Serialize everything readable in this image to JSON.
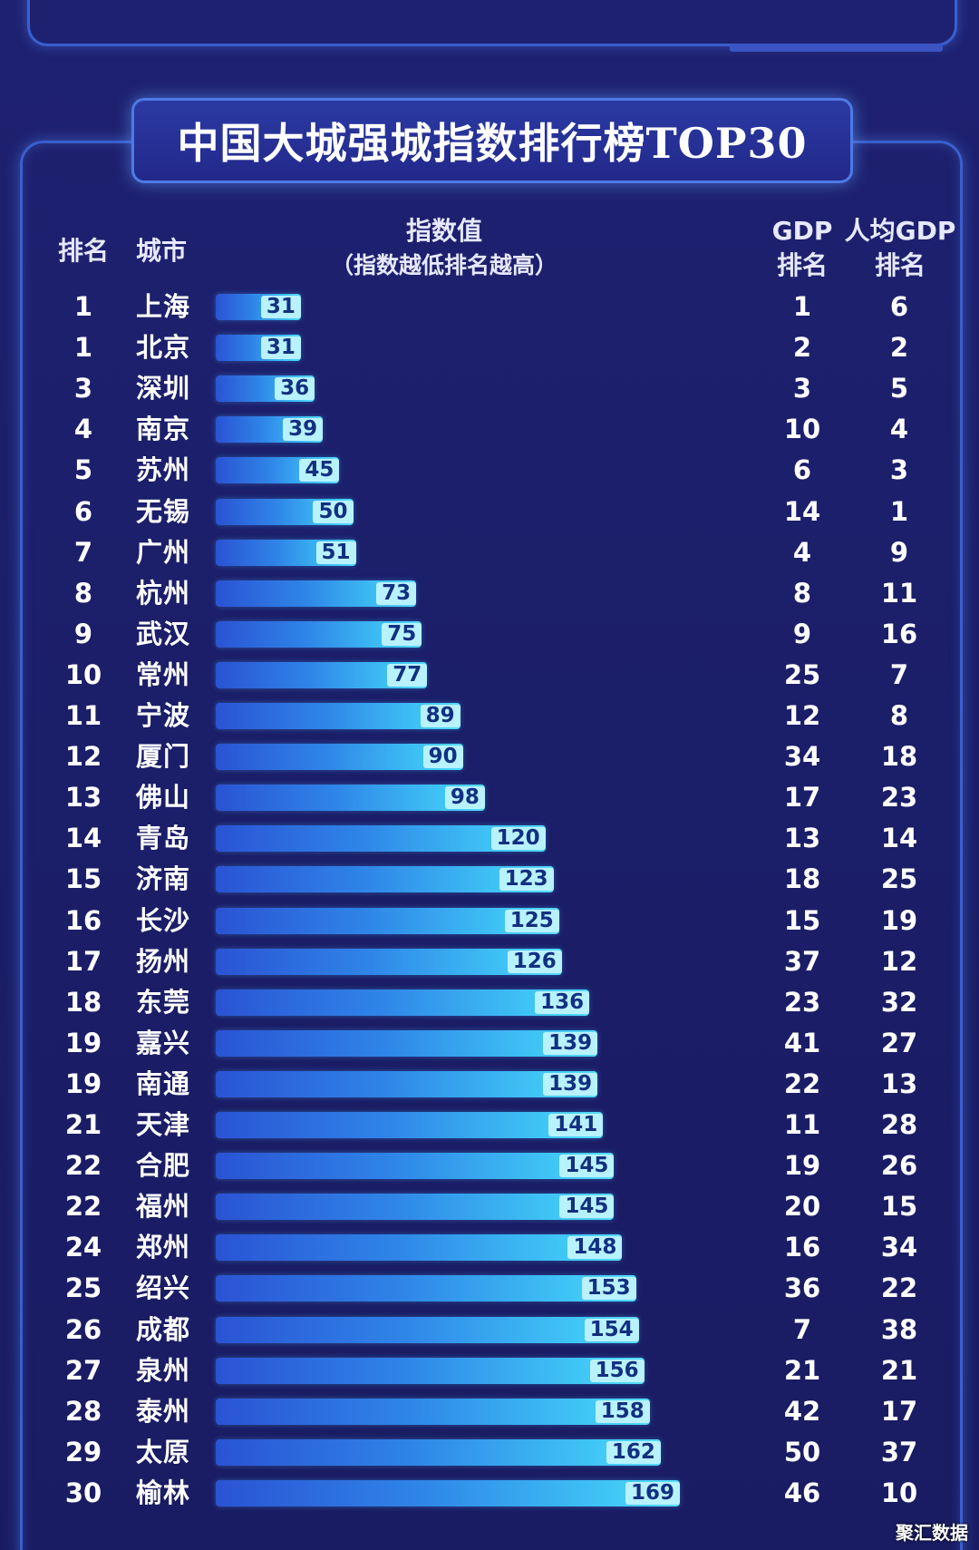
{
  "title": "中国大城强城指数排行榜TOP30",
  "headers": {
    "rank": "排名",
    "city": "城市",
    "index_line1": "指数值",
    "index_line2": "（指数越低排名越高）",
    "gdp_line1": "GDP",
    "gdp_line2": "排名",
    "pgdp_line1": "人均GDP",
    "pgdp_line2": "排名"
  },
  "watermark": "聚汇数据",
  "colors": {
    "background": "#1c1f6b",
    "frame": "#3a5fd0",
    "bar_start": "#2a53d4",
    "bar_end": "#56dcfb",
    "label_bg": "#b9f2ff"
  },
  "chart_data": {
    "type": "bar",
    "orientation": "horizontal",
    "title": "中国大城强城指数排行榜TOP30",
    "xlim": [
      0,
      180
    ],
    "rows": [
      {
        "rank": "1",
        "city": "上海",
        "value": 31,
        "gdp_rank": "1",
        "per_capita_gdp_rank": "6"
      },
      {
        "rank": "1",
        "city": "北京",
        "value": 31,
        "gdp_rank": "2",
        "per_capita_gdp_rank": "2"
      },
      {
        "rank": "3",
        "city": "深圳",
        "value": 36,
        "gdp_rank": "3",
        "per_capita_gdp_rank": "5"
      },
      {
        "rank": "4",
        "city": "南京",
        "value": 39,
        "gdp_rank": "10",
        "per_capita_gdp_rank": "4"
      },
      {
        "rank": "5",
        "city": "苏州",
        "value": 45,
        "gdp_rank": "6",
        "per_capita_gdp_rank": "3"
      },
      {
        "rank": "6",
        "city": "无锡",
        "value": 50,
        "gdp_rank": "14",
        "per_capita_gdp_rank": "1"
      },
      {
        "rank": "7",
        "city": "广州",
        "value": 51,
        "gdp_rank": "4",
        "per_capita_gdp_rank": "9"
      },
      {
        "rank": "8",
        "city": "杭州",
        "value": 73,
        "gdp_rank": "8",
        "per_capita_gdp_rank": "11"
      },
      {
        "rank": "9",
        "city": "武汉",
        "value": 75,
        "gdp_rank": "9",
        "per_capita_gdp_rank": "16"
      },
      {
        "rank": "10",
        "city": "常州",
        "value": 77,
        "gdp_rank": "25",
        "per_capita_gdp_rank": "7"
      },
      {
        "rank": "11",
        "city": "宁波",
        "value": 89,
        "gdp_rank": "12",
        "per_capita_gdp_rank": "8"
      },
      {
        "rank": "12",
        "city": "厦门",
        "value": 90,
        "gdp_rank": "34",
        "per_capita_gdp_rank": "18"
      },
      {
        "rank": "13",
        "city": "佛山",
        "value": 98,
        "gdp_rank": "17",
        "per_capita_gdp_rank": "23"
      },
      {
        "rank": "14",
        "city": "青岛",
        "value": 120,
        "gdp_rank": "13",
        "per_capita_gdp_rank": "14"
      },
      {
        "rank": "15",
        "city": "济南",
        "value": 123,
        "gdp_rank": "18",
        "per_capita_gdp_rank": "25"
      },
      {
        "rank": "16",
        "city": "长沙",
        "value": 125,
        "gdp_rank": "15",
        "per_capita_gdp_rank": "19"
      },
      {
        "rank": "17",
        "city": "扬州",
        "value": 126,
        "gdp_rank": "37",
        "per_capita_gdp_rank": "12"
      },
      {
        "rank": "18",
        "city": "东莞",
        "value": 136,
        "gdp_rank": "23",
        "per_capita_gdp_rank": "32"
      },
      {
        "rank": "19",
        "city": "嘉兴",
        "value": 139,
        "gdp_rank": "41",
        "per_capita_gdp_rank": "27"
      },
      {
        "rank": "19",
        "city": "南通",
        "value": 139,
        "gdp_rank": "22",
        "per_capita_gdp_rank": "13"
      },
      {
        "rank": "21",
        "city": "天津",
        "value": 141,
        "gdp_rank": "11",
        "per_capita_gdp_rank": "28"
      },
      {
        "rank": "22",
        "city": "合肥",
        "value": 145,
        "gdp_rank": "19",
        "per_capita_gdp_rank": "26"
      },
      {
        "rank": "22",
        "city": "福州",
        "value": 145,
        "gdp_rank": "20",
        "per_capita_gdp_rank": "15"
      },
      {
        "rank": "24",
        "city": "郑州",
        "value": 148,
        "gdp_rank": "16",
        "per_capita_gdp_rank": "34"
      },
      {
        "rank": "25",
        "city": "绍兴",
        "value": 153,
        "gdp_rank": "36",
        "per_capita_gdp_rank": "22"
      },
      {
        "rank": "26",
        "city": "成都",
        "value": 154,
        "gdp_rank": "7",
        "per_capita_gdp_rank": "38"
      },
      {
        "rank": "27",
        "city": "泉州",
        "value": 156,
        "gdp_rank": "21",
        "per_capita_gdp_rank": "21"
      },
      {
        "rank": "28",
        "city": "泰州",
        "value": 158,
        "gdp_rank": "42",
        "per_capita_gdp_rank": "17"
      },
      {
        "rank": "29",
        "city": "太原",
        "value": 162,
        "gdp_rank": "50",
        "per_capita_gdp_rank": "37"
      },
      {
        "rank": "30",
        "city": "榆林",
        "value": 169,
        "gdp_rank": "46",
        "per_capita_gdp_rank": "10"
      }
    ]
  }
}
